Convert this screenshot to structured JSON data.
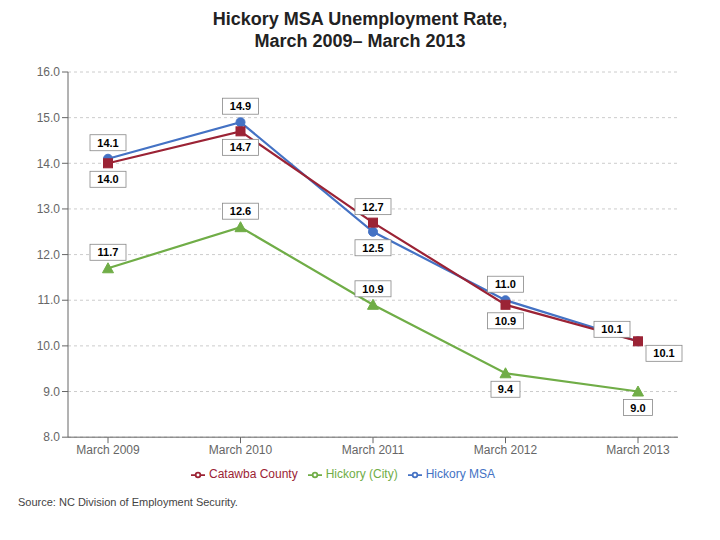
{
  "chart_data": {
    "type": "line",
    "title": "Hickory MSA Unemployment Rate,\nMarch 2009– March 2013",
    "annotations": [
      "Source: NC Division of Employment Security."
    ],
    "categories": [
      "March 2009",
      "March 2010",
      "March 2011",
      "March 2012",
      "March 2013"
    ],
    "series": [
      {
        "name": "Hickory MSA",
        "color": "#4472C4",
        "marker": "circle",
        "values": [
          14.1,
          14.9,
          12.5,
          11.0,
          10.1
        ],
        "value_labels": [
          "14.1",
          "14.9",
          "12.5",
          "11.0",
          "10.1"
        ]
      },
      {
        "name": "Catawba County",
        "color": "#9B2335",
        "marker": "square",
        "values": [
          14.0,
          14.7,
          12.7,
          10.9,
          10.1
        ],
        "value_labels": [
          "14.0",
          "14.7",
          "12.7",
          "10.9",
          "10.1"
        ]
      },
      {
        "name": "Hickory (City)",
        "color": "#70AD47",
        "marker": "triangle",
        "values": [
          11.7,
          12.6,
          10.9,
          9.4,
          9.0
        ],
        "value_labels": [
          "11.7",
          "12.6",
          "10.9",
          "9.4",
          "9.0"
        ]
      }
    ],
    "ylim": [
      8.0,
      16.0
    ],
    "yticks": [
      {
        "value": 8.0,
        "label": "8.0"
      },
      {
        "value": 9.0,
        "label": "9.0"
      },
      {
        "value": 10.0,
        "label": "10.0"
      },
      {
        "value": 11.0,
        "label": "11.0"
      },
      {
        "value": 12.0,
        "label": "12.0"
      },
      {
        "value": 13.0,
        "label": "13.0"
      },
      {
        "value": 14.0,
        "label": "14.0"
      },
      {
        "value": 15.0,
        "label": "15.0"
      },
      {
        "value": 16.0,
        "label": "16.0"
      }
    ],
    "grid": true,
    "legend": "bottom",
    "data_labels": true
  }
}
